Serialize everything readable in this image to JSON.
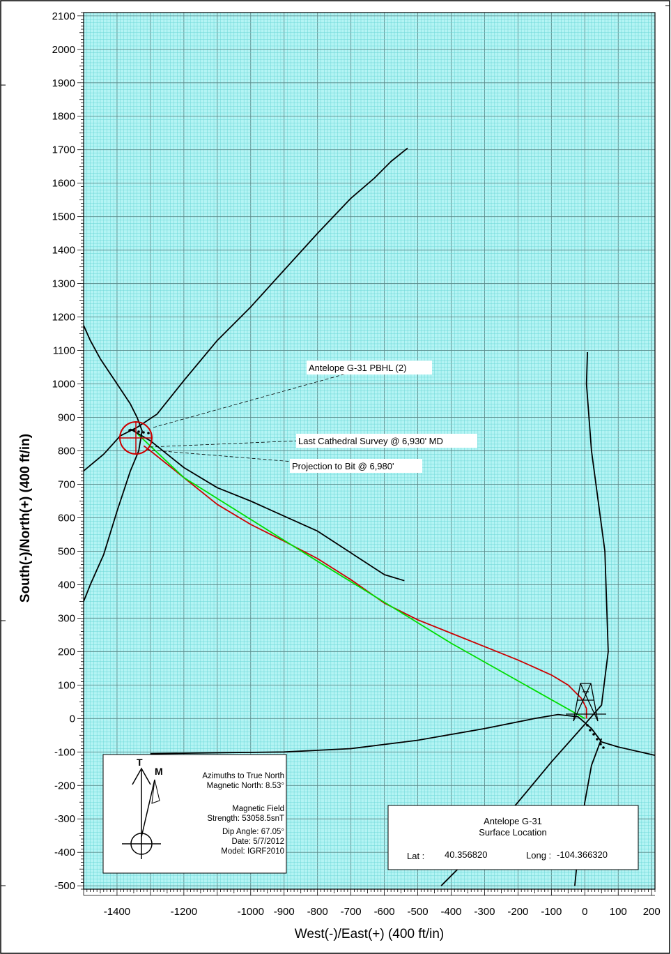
{
  "chart_data": {
    "type": "line",
    "xlabel": "West(-)/East(+) (400 ft/in)",
    "ylabel": "South(-)/North(+) (400 ft/in)",
    "xlim": [
      -1500,
      210
    ],
    "ylim": [
      -510,
      2110
    ],
    "x_ticks": [
      -1400,
      -1200,
      -1000,
      -900,
      -800,
      -700,
      -600,
      -500,
      -400,
      -300,
      -200,
      -100,
      0,
      100,
      200
    ],
    "y_ticks": [
      2100,
      2000,
      1900,
      1800,
      1700,
      1600,
      1500,
      1400,
      1300,
      1200,
      1100,
      1000,
      900,
      800,
      700,
      600,
      500,
      400,
      300,
      200,
      100,
      0,
      -100,
      -200,
      -300,
      -400,
      -500
    ],
    "grid": true,
    "series": [
      {
        "color": "#cc0000",
        "points": [
          [
            5,
            0
          ],
          [
            5,
            30
          ],
          [
            -10,
            60
          ],
          [
            -50,
            100
          ],
          [
            -100,
            130
          ],
          [
            -200,
            175
          ],
          [
            -300,
            215
          ],
          [
            -400,
            255
          ],
          [
            -500,
            295
          ],
          [
            -600,
            345
          ],
          [
            -700,
            415
          ],
          [
            -800,
            478
          ],
          [
            -900,
            530
          ],
          [
            -1000,
            580
          ],
          [
            -1100,
            640
          ],
          [
            -1200,
            720
          ],
          [
            -1300,
            800
          ],
          [
            -1320,
            815
          ]
        ]
      },
      {
        "color": "#00dd00",
        "points": [
          [
            0,
            0
          ],
          [
            -400,
            225
          ],
          [
            -800,
            470
          ],
          [
            -1200,
            720
          ],
          [
            -1340,
            852
          ]
        ]
      },
      {
        "color": "#000000",
        "points": [
          [
            -540,
            412
          ],
          [
            -600,
            430
          ],
          [
            -700,
            495
          ],
          [
            -800,
            560
          ],
          [
            -900,
            605
          ],
          [
            -1000,
            650
          ],
          [
            -1100,
            690
          ],
          [
            -1200,
            750
          ],
          [
            -1300,
            830
          ],
          [
            -1360,
            865
          ]
        ]
      },
      {
        "color": "#000000",
        "points": [
          [
            -1500,
            1175
          ],
          [
            -1480,
            1130
          ],
          [
            -1450,
            1075
          ],
          [
            -1400,
            1000
          ],
          [
            -1360,
            940
          ],
          [
            -1340,
            900
          ],
          [
            -1325,
            860
          ],
          [
            -1335,
            800
          ],
          [
            -1360,
            740
          ],
          [
            -1400,
            620
          ],
          [
            -1440,
            490
          ],
          [
            -1480,
            400
          ],
          [
            -1500,
            350
          ]
        ]
      },
      {
        "color": "#000000",
        "points": [
          [
            -1500,
            740
          ],
          [
            -1440,
            790
          ],
          [
            -1390,
            845
          ],
          [
            -1340,
            870
          ],
          [
            -1280,
            910
          ],
          [
            -1200,
            1010
          ],
          [
            -1100,
            1130
          ],
          [
            -1000,
            1230
          ],
          [
            -900,
            1340
          ],
          [
            -800,
            1450
          ],
          [
            -700,
            1555
          ],
          [
            -630,
            1615
          ],
          [
            -580,
            1665
          ],
          [
            -530,
            1705
          ]
        ]
      },
      {
        "color": "#000000",
        "points": [
          [
            -430,
            -500
          ],
          [
            -350,
            -420
          ],
          [
            -200,
            -250
          ],
          [
            -100,
            -130
          ],
          [
            -20,
            -40
          ],
          [
            50,
            40
          ],
          [
            70,
            200
          ],
          [
            60,
            500
          ],
          [
            20,
            800
          ],
          [
            5,
            1000
          ],
          [
            8,
            1095
          ]
        ]
      },
      {
        "color": "#000000",
        "points": [
          [
            -1300,
            -105
          ],
          [
            -900,
            -100
          ],
          [
            -700,
            -90
          ],
          [
            -500,
            -65
          ],
          [
            -300,
            -30
          ],
          [
            -150,
            0
          ],
          [
            -80,
            12
          ],
          [
            -20,
            5
          ],
          [
            20,
            -30
          ],
          [
            50,
            -70
          ],
          [
            100,
            -85
          ],
          [
            210,
            -110
          ]
        ]
      },
      {
        "color": "#000000",
        "points": [
          [
            -30,
            -500
          ],
          [
            -20,
            -400
          ],
          [
            0,
            -250
          ],
          [
            20,
            -140
          ],
          [
            50,
            -60
          ]
        ]
      }
    ],
    "annotations": [
      {
        "text": "Antelope G-31 PBHL (2)"
      },
      {
        "text": "Last Cathedral Survey @ 6,930' MD"
      },
      {
        "text": "Projection to Bit @ 6,980'"
      }
    ],
    "north_arrow": {
      "true_label": "T",
      "magnetic_label": "M"
    },
    "info_box": {
      "lines": [
        "Azimuths to True North",
        "Magnetic North: 8.53°",
        "",
        "Magnetic Field",
        "Strength: 53058.5snT",
        "Dip Angle: 67.05°",
        "Date: 5/7/2012",
        "Model: IGRF2010"
      ]
    },
    "location_box": {
      "title": "Antelope G-31",
      "subtitle": "Surface Location",
      "lat_label": "Lat :",
      "lat_value": "40.356820",
      "long_label": "Long :",
      "long_value": "-104.366320"
    }
  },
  "colors": {
    "plot_bg": "#b4f4f4",
    "minor_grid": "#6ad6d6",
    "major_grid": "#5a8c8c",
    "red": "#cc0000",
    "green": "#00dd00"
  }
}
